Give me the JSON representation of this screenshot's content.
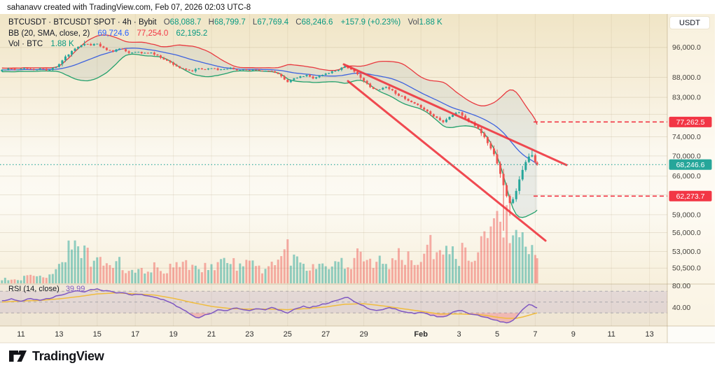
{
  "header": {
    "attribution": "sahanavv created with TradingView.com, Feb 07, 2026 02:03 UTC-8"
  },
  "legend": {
    "symbol_line": "BTCUSDT · BTCUSDT SPOT · 4h · Bybit",
    "o_label": "O",
    "o_value": "68,088.7",
    "h_label": "H",
    "h_value": "68,799.7",
    "l_label": "L",
    "l_value": "67,769.4",
    "c_label": "C",
    "c_value": "68,246.6",
    "change": "+157.9 (+0.23%)",
    "vol_label": "Vol",
    "vol_value": "1.88 K",
    "bb_line": "BB (20, SMA, close, 2)",
    "bb_basis": "69,724.6",
    "bb_upper": "77,254.0",
    "bb_lower": "62,195.2",
    "vol_row_label": "Vol · BTC",
    "vol_row_value": "1.88 K",
    "rsi_label": "RSI (14, close)",
    "rsi_value": "39.99"
  },
  "price_axis": {
    "currency_button": "USDT",
    "ticks": [
      {
        "price": 96000,
        "label": "96,000.0"
      },
      {
        "price": 88000,
        "label": "88,000.0"
      },
      {
        "price": 83000,
        "label": "83,000.0"
      },
      {
        "price": 79000,
        "label": ""
      },
      {
        "price": 74000,
        "label": "74,000.0"
      },
      {
        "price": 70000,
        "label": "70,000.0"
      },
      {
        "price": 66000,
        "label": "66,000.0"
      },
      {
        "price": 62500,
        "label": ""
      },
      {
        "price": 59000,
        "label": "59,000.0"
      },
      {
        "price": 56000,
        "label": "56,000.0"
      },
      {
        "price": 53000,
        "label": "53,000.0"
      },
      {
        "price": 50500,
        "label": "50,500.0"
      }
    ],
    "current_price": {
      "value": 68246.6,
      "label": "68,246.6"
    },
    "levels": [
      {
        "value": 77262.5,
        "label": "77,262.5"
      },
      {
        "value": 62273.7,
        "label": "62,273.7"
      }
    ]
  },
  "rsi_axis": {
    "ticks": [
      {
        "value": 80,
        "label": "80.00"
      },
      {
        "value": 40,
        "label": "40.00"
      }
    ],
    "bands": [
      70,
      50,
      30
    ]
  },
  "time_axis": {
    "ticks": [
      {
        "t": 1,
        "label": "11"
      },
      {
        "t": 3,
        "label": "13"
      },
      {
        "t": 5,
        "label": "15"
      },
      {
        "t": 7,
        "label": "17"
      },
      {
        "t": 9,
        "label": "19"
      },
      {
        "t": 11,
        "label": "21"
      },
      {
        "t": 13,
        "label": "23"
      },
      {
        "t": 15,
        "label": "25"
      },
      {
        "t": 17,
        "label": "27"
      },
      {
        "t": 19,
        "label": "29"
      },
      {
        "t": 22,
        "label": "Feb",
        "bold": true
      },
      {
        "t": 24,
        "label": "3"
      },
      {
        "t": 26,
        "label": "5"
      },
      {
        "t": 28,
        "label": "7"
      },
      {
        "t": 30,
        "label": "9"
      },
      {
        "t": 32,
        "label": "11"
      },
      {
        "t": 34,
        "label": "13"
      }
    ]
  },
  "footer": {
    "brand": "TradingView"
  },
  "colors": {
    "up": "#26a69a",
    "down": "#ef5350",
    "vol_up": "rgba(38,166,154,0.5)",
    "vol_down": "rgba(239,83,80,0.45)",
    "bb_upper": "#e8393f",
    "bb_basis": "#3e63de",
    "bb_lower": "#22a06b",
    "bb_fill": "rgba(110,140,150,0.13)",
    "trend": "#ef323c",
    "level": "#f23645",
    "current": "#26a69a",
    "rsi": "#7e57c2",
    "rsi_ma": "#f0bc3e",
    "badge_red": "#f23645",
    "badge_teal": "#26a69a",
    "grid": "rgba(160,140,100,0.20)",
    "vgrid": "rgba(160,140,100,0.13)"
  },
  "chart_data": {
    "type": "candlestick",
    "symbol": "BTCUSDT",
    "market": "BTCUSDT SPOT",
    "interval": "4h",
    "exchange": "Bybit",
    "indicators": [
      "BB (20, SMA, close, 2)",
      "Vol · BTC",
      "RSI (14, close)"
    ],
    "last": {
      "open": 68088.7,
      "high": 68799.7,
      "low": 67769.4,
      "close": 68246.6,
      "change": 157.9,
      "change_pct": 0.23,
      "volume": "1.88 K"
    },
    "time_range": "Jan 10 – Feb 7 (t = days since Jan 10), 4h candles",
    "price_scale": "log",
    "price_range_visible": [
      50500,
      98000
    ],
    "price_path": [
      [
        0,
        89900
      ],
      [
        0.4,
        90300
      ],
      [
        0.8,
        89800
      ],
      [
        1.2,
        90400
      ],
      [
        1.6,
        90000
      ],
      [
        2,
        90200
      ],
      [
        2.4,
        89800
      ],
      [
        2.8,
        90600
      ],
      [
        3,
        91400
      ],
      [
        3.3,
        93200
      ],
      [
        3.6,
        94600
      ],
      [
        3.9,
        95800
      ],
      [
        4.2,
        96900
      ],
      [
        4.4,
        97200
      ],
      [
        4.6,
        96400
      ],
      [
        4.8,
        96900
      ],
      [
        5,
        97100
      ],
      [
        5.2,
        96100
      ],
      [
        5.5,
        95400
      ],
      [
        5.8,
        94900
      ],
      [
        6.1,
        95700
      ],
      [
        6.4,
        95200
      ],
      [
        6.7,
        94400
      ],
      [
        7,
        94900
      ],
      [
        7.4,
        94300
      ],
      [
        7.8,
        94600
      ],
      [
        8.1,
        93800
      ],
      [
        8.4,
        93100
      ],
      [
        8.7,
        92200
      ],
      [
        9,
        91400
      ],
      [
        9.3,
        90500
      ],
      [
        9.6,
        89900
      ],
      [
        10,
        89600
      ],
      [
        10.3,
        90300
      ],
      [
        10.6,
        90000
      ],
      [
        11,
        90500
      ],
      [
        11.3,
        89900
      ],
      [
        11.6,
        90200
      ],
      [
        12,
        90400
      ],
      [
        12.3,
        89800
      ],
      [
        12.6,
        90100
      ],
      [
        13,
        89600
      ],
      [
        13.3,
        90000
      ],
      [
        13.6,
        89500
      ],
      [
        14,
        89800
      ],
      [
        14.3,
        89200
      ],
      [
        14.6,
        88400
      ],
      [
        15,
        86900
      ],
      [
        15.2,
        87300
      ],
      [
        15.5,
        87900
      ],
      [
        16,
        88500
      ],
      [
        16.3,
        87800
      ],
      [
        16.6,
        88200
      ],
      [
        17,
        88900
      ],
      [
        17.3,
        89400
      ],
      [
        17.6,
        89900
      ],
      [
        18,
        90900
      ],
      [
        18.2,
        90400
      ],
      [
        18.5,
        89300
      ],
      [
        18.8,
        88200
      ],
      [
        19,
        87100
      ],
      [
        19.3,
        85600
      ],
      [
        19.6,
        84700
      ],
      [
        19.9,
        85200
      ],
      [
        20.2,
        85600
      ],
      [
        20.5,
        84600
      ],
      [
        20.8,
        83600
      ],
      [
        21,
        83100
      ],
      [
        21.3,
        82200
      ],
      [
        21.6,
        81500
      ],
      [
        22,
        80700
      ],
      [
        22.3,
        79800
      ],
      [
        22.6,
        78700
      ],
      [
        23,
        77800
      ],
      [
        23.2,
        77300
      ],
      [
        23.5,
        78500
      ],
      [
        23.8,
        79200
      ],
      [
        24,
        79500
      ],
      [
        24.2,
        78600
      ],
      [
        24.5,
        77400
      ],
      [
        24.8,
        76600
      ],
      [
        25,
        75800
      ],
      [
        25.3,
        74100
      ],
      [
        25.6,
        72000
      ],
      [
        25.9,
        69800
      ],
      [
        26.1,
        67400
      ],
      [
        26.3,
        64800
      ],
      [
        26.5,
        62200
      ],
      [
        26.7,
        60900
      ],
      [
        26.9,
        62000
      ],
      [
        27.1,
        64600
      ],
      [
        27.3,
        66800
      ],
      [
        27.5,
        68700
      ],
      [
        27.7,
        70000
      ],
      [
        27.85,
        70300
      ],
      [
        28,
        68800
      ],
      [
        28.1,
        68250
      ]
    ],
    "wick_overrides": [
      {
        "t": 4.4,
        "high": 97900
      },
      {
        "t": 18.0,
        "high": 91400
      },
      {
        "t": 26.4,
        "low": 56300
      },
      {
        "t": 26.6,
        "low": 58800
      },
      {
        "t": 27.85,
        "high": 71200
      }
    ],
    "volume_profile_rel": [
      [
        0,
        0.06
      ],
      [
        0.5,
        0.08
      ],
      [
        1,
        0.07
      ],
      [
        1.5,
        0.1
      ],
      [
        2,
        0.09
      ],
      [
        2.5,
        0.14
      ],
      [
        3,
        0.3
      ],
      [
        3.3,
        0.42
      ],
      [
        3.6,
        0.5
      ],
      [
        4,
        0.45
      ],
      [
        4.3,
        0.55
      ],
      [
        4.6,
        0.4
      ],
      [
        5,
        0.32
      ],
      [
        5.5,
        0.26
      ],
      [
        6,
        0.3
      ],
      [
        6.5,
        0.22
      ],
      [
        7,
        0.18
      ],
      [
        7.5,
        0.15
      ],
      [
        8,
        0.26
      ],
      [
        8.5,
        0.2
      ],
      [
        9,
        0.3
      ],
      [
        9.5,
        0.24
      ],
      [
        10,
        0.3
      ],
      [
        10.5,
        0.22
      ],
      [
        11,
        0.26
      ],
      [
        11.5,
        0.32
      ],
      [
        12,
        0.28
      ],
      [
        12.5,
        0.24
      ],
      [
        13,
        0.3
      ],
      [
        13.5,
        0.22
      ],
      [
        14,
        0.26
      ],
      [
        14.5,
        0.3
      ],
      [
        15,
        0.5
      ],
      [
        15.3,
        0.35
      ],
      [
        15.7,
        0.28
      ],
      [
        16,
        0.24
      ],
      [
        16.5,
        0.28
      ],
      [
        17,
        0.32
      ],
      [
        17.5,
        0.26
      ],
      [
        18,
        0.3
      ],
      [
        18.5,
        0.34
      ],
      [
        19,
        0.42
      ],
      [
        19.5,
        0.33
      ],
      [
        20,
        0.28
      ],
      [
        20.5,
        0.32
      ],
      [
        21,
        0.38
      ],
      [
        21.5,
        0.32
      ],
      [
        22,
        0.36
      ],
      [
        22.5,
        0.5
      ],
      [
        22.8,
        0.42
      ],
      [
        23.2,
        0.38
      ],
      [
        23.6,
        0.42
      ],
      [
        24,
        0.38
      ],
      [
        24.4,
        0.48
      ],
      [
        24.8,
        0.44
      ],
      [
        25.2,
        0.6
      ],
      [
        25.6,
        0.75
      ],
      [
        26,
        0.9
      ],
      [
        26.3,
        1.0
      ],
      [
        26.6,
        0.85
      ],
      [
        26.9,
        0.6
      ],
      [
        27.2,
        0.5
      ],
      [
        27.5,
        0.55
      ],
      [
        27.8,
        0.42
      ],
      [
        28.1,
        0.3
      ]
    ],
    "rsi_path": [
      [
        0,
        52
      ],
      [
        0.5,
        56
      ],
      [
        1,
        51
      ],
      [
        1.5,
        57
      ],
      [
        2,
        53
      ],
      [
        2.5,
        57
      ],
      [
        3,
        62
      ],
      [
        3.5,
        67
      ],
      [
        4,
        71
      ],
      [
        4.3,
        69
      ],
      [
        4.6,
        73
      ],
      [
        5,
        74
      ],
      [
        5.3,
        70
      ],
      [
        5.6,
        72
      ],
      [
        6,
        66
      ],
      [
        6.4,
        68
      ],
      [
        6.8,
        63
      ],
      [
        7.2,
        65
      ],
      [
        7.6,
        62
      ],
      [
        8,
        58
      ],
      [
        8.4,
        55
      ],
      [
        8.8,
        50
      ],
      [
        9.2,
        42
      ],
      [
        9.6,
        34
      ],
      [
        10,
        26
      ],
      [
        10.3,
        20
      ],
      [
        10.6,
        25
      ],
      [
        11,
        30
      ],
      [
        11.4,
        36
      ],
      [
        11.8,
        33
      ],
      [
        12.2,
        40
      ],
      [
        12.6,
        37
      ],
      [
        13,
        34
      ],
      [
        13.4,
        39
      ],
      [
        13.8,
        36
      ],
      [
        14.2,
        40
      ],
      [
        14.6,
        35
      ],
      [
        15,
        30
      ],
      [
        15.4,
        38
      ],
      [
        15.8,
        42
      ],
      [
        16.2,
        40
      ],
      [
        16.6,
        44
      ],
      [
        17,
        47
      ],
      [
        17.4,
        51
      ],
      [
        17.8,
        55
      ],
      [
        18.1,
        59
      ],
      [
        18.4,
        53
      ],
      [
        18.8,
        46
      ],
      [
        19.2,
        39
      ],
      [
        19.6,
        34
      ],
      [
        20,
        37
      ],
      [
        20.4,
        40
      ],
      [
        20.8,
        35
      ],
      [
        21.2,
        32
      ],
      [
        21.6,
        29
      ],
      [
        22,
        31
      ],
      [
        22.4,
        27
      ],
      [
        22.8,
        24
      ],
      [
        23.2,
        22
      ],
      [
        23.5,
        28
      ],
      [
        23.8,
        33
      ],
      [
        24.1,
        35
      ],
      [
        24.4,
        30
      ],
      [
        24.7,
        27
      ],
      [
        25,
        25
      ],
      [
        25.3,
        22
      ],
      [
        25.7,
        19
      ],
      [
        26,
        16
      ],
      [
        26.3,
        13
      ],
      [
        26.55,
        11
      ],
      [
        26.8,
        15
      ],
      [
        27,
        22
      ],
      [
        27.2,
        30
      ],
      [
        27.4,
        38
      ],
      [
        27.6,
        44
      ],
      [
        27.8,
        46
      ],
      [
        27.95,
        42
      ],
      [
        28.1,
        39.99
      ]
    ],
    "rsi_ma_path": [
      [
        0,
        50
      ],
      [
        1,
        52
      ],
      [
        2,
        53
      ],
      [
        3,
        56
      ],
      [
        4,
        60
      ],
      [
        5,
        65
      ],
      [
        6,
        67
      ],
      [
        7,
        65
      ],
      [
        8,
        63
      ],
      [
        9,
        57
      ],
      [
        10,
        49
      ],
      [
        11,
        42
      ],
      [
        12,
        38
      ],
      [
        13,
        37
      ],
      [
        14,
        37
      ],
      [
        15,
        36
      ],
      [
        16,
        38
      ],
      [
        17,
        41
      ],
      [
        18,
        46
      ],
      [
        19,
        47
      ],
      [
        20,
        43
      ],
      [
        21,
        38
      ],
      [
        22,
        33
      ],
      [
        23,
        28
      ],
      [
        24,
        28
      ],
      [
        25,
        27
      ],
      [
        25.5,
        25
      ],
      [
        26,
        22
      ],
      [
        26.5,
        20
      ],
      [
        27,
        20
      ],
      [
        27.4,
        23
      ],
      [
        27.8,
        27
      ],
      [
        28.1,
        30
      ]
    ],
    "trendlines": [
      {
        "name": "upper-channel",
        "t1": 17.95,
        "p1": 91370,
        "t2": 29.64,
        "p2": 68170
      },
      {
        "name": "lower-channel",
        "t1": 18.17,
        "p1": 87010,
        "t2": 28.54,
        "p2": 54700
      }
    ],
    "horizontal_levels": [
      77262.5,
      62273.7
    ],
    "current_price": 68246.6
  }
}
